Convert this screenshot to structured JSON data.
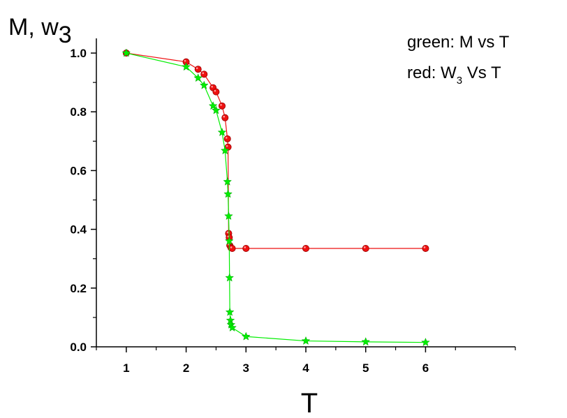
{
  "chart_data": {
    "type": "scatter",
    "xlabel": "T",
    "ylabel": {
      "main": "M, w",
      "sub": "3"
    },
    "xlim": [
      0.5,
      7.5
    ],
    "ylim": [
      0,
      1.05
    ],
    "x_ticks": [
      1,
      2,
      3,
      4,
      5,
      6
    ],
    "x_tick_labels": [
      "1",
      "2",
      "3",
      "4",
      "5",
      "6"
    ],
    "y_ticks": [
      0,
      0.2,
      0.4,
      0.6,
      0.8,
      1.0
    ],
    "y_tick_labels": [
      "0.0",
      "0.2",
      "0.4",
      "0.6",
      "0.8",
      "1.0"
    ],
    "grid": false,
    "legend": {
      "placement": "top-right",
      "lines": [
        {
          "text": "green: M vs T"
        },
        {
          "prefix": "red: W",
          "sub": "3",
          "suffix": " Vs T"
        }
      ]
    },
    "series": [
      {
        "label": "M vs T",
        "color": "#00ee00",
        "marker": "star",
        "points": [
          [
            1.0,
            1.0
          ],
          [
            2.0,
            0.953
          ],
          [
            2.2,
            0.915
          ],
          [
            2.3,
            0.89
          ],
          [
            2.45,
            0.82
          ],
          [
            2.5,
            0.805
          ],
          [
            2.6,
            0.73
          ],
          [
            2.65,
            0.668
          ],
          [
            2.69,
            0.562
          ],
          [
            2.7,
            0.52
          ],
          [
            2.71,
            0.445
          ],
          [
            2.72,
            0.36
          ],
          [
            2.725,
            0.235
          ],
          [
            2.73,
            0.118
          ],
          [
            2.74,
            0.09
          ],
          [
            2.75,
            0.075
          ],
          [
            2.77,
            0.065
          ],
          [
            3.0,
            0.035
          ],
          [
            4.0,
            0.02
          ],
          [
            5.0,
            0.017
          ],
          [
            6.0,
            0.015
          ]
        ]
      },
      {
        "label": "W3 vs T",
        "color": "#ee1111",
        "marker": "circle",
        "points": [
          [
            1.0,
            1.0
          ],
          [
            2.0,
            0.97
          ],
          [
            2.2,
            0.945
          ],
          [
            2.3,
            0.928
          ],
          [
            2.45,
            0.882
          ],
          [
            2.5,
            0.868
          ],
          [
            2.6,
            0.82
          ],
          [
            2.65,
            0.78
          ],
          [
            2.69,
            0.708
          ],
          [
            2.7,
            0.68
          ],
          [
            2.71,
            0.386
          ],
          [
            2.72,
            0.372
          ],
          [
            2.73,
            0.345
          ],
          [
            2.75,
            0.337
          ],
          [
            2.77,
            0.335
          ],
          [
            3.0,
            0.335
          ],
          [
            4.0,
            0.335
          ],
          [
            5.0,
            0.335
          ],
          [
            6.0,
            0.335
          ]
        ]
      }
    ]
  }
}
